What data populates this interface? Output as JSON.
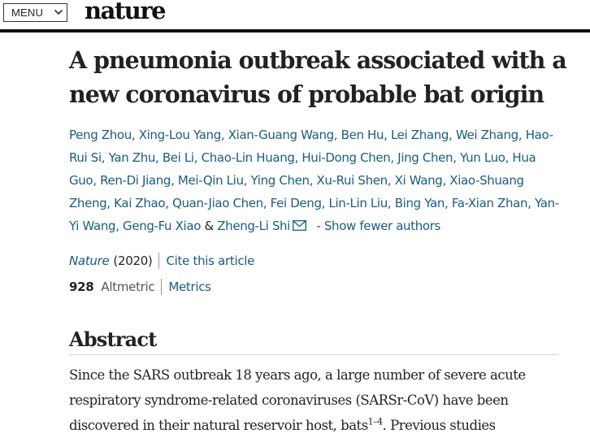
{
  "header": {
    "menu_label": "MENU",
    "logo_text": "nature"
  },
  "article": {
    "title": "A pneumonia outbreak associated with a new coronavirus of probable bat origin",
    "authors_line": "Peng Zhou, Xing-Lou Yang, Xian-Guang Wang, Ben Hu, Lei Zhang, Wei Zhang, Hao-Rui Si, Yan Zhu, Bei Li, Chao-Lin Huang, Hui-Dong Chen, Jing Chen, Yun Luo, Hua Guo, Ren-Di Jiang, Mei-Qin Liu, Ying Chen, Xu-Rui Shen, Xi Wang, Xiao-Shuang Zheng, Kai Zhao, Quan-Jiao Chen, Fei Deng, Lin-Lin Liu, Bing Yan, Fa-Xian Zhan, Yan-Yi Wang, Geng-Fu Xiao",
    "amp": "&",
    "last_author": "Zheng-Li Shi",
    "show_fewer": "- Show fewer authors",
    "journal": "Nature",
    "year": "(2020)",
    "cite_link": "Cite this article",
    "altmetric_count": "928",
    "altmetric_label": "Altmetric",
    "metrics_link": "Metrics"
  },
  "abstract": {
    "heading": "Abstract",
    "text_before_sup": "Since the SARS outbreak 18 years ago, a large number of severe acute respiratory syndrome-related coronaviruses (SARSr-CoV) have been discovered in their natural reservoir host, bats",
    "sup": "1–4",
    "text_after_sup": ". Previous studies"
  },
  "colors": {
    "link": "#1a5c80",
    "text": "#222222",
    "rule": "#111111"
  },
  "icons": [
    "chevron-down-icon",
    "mail-icon"
  ]
}
